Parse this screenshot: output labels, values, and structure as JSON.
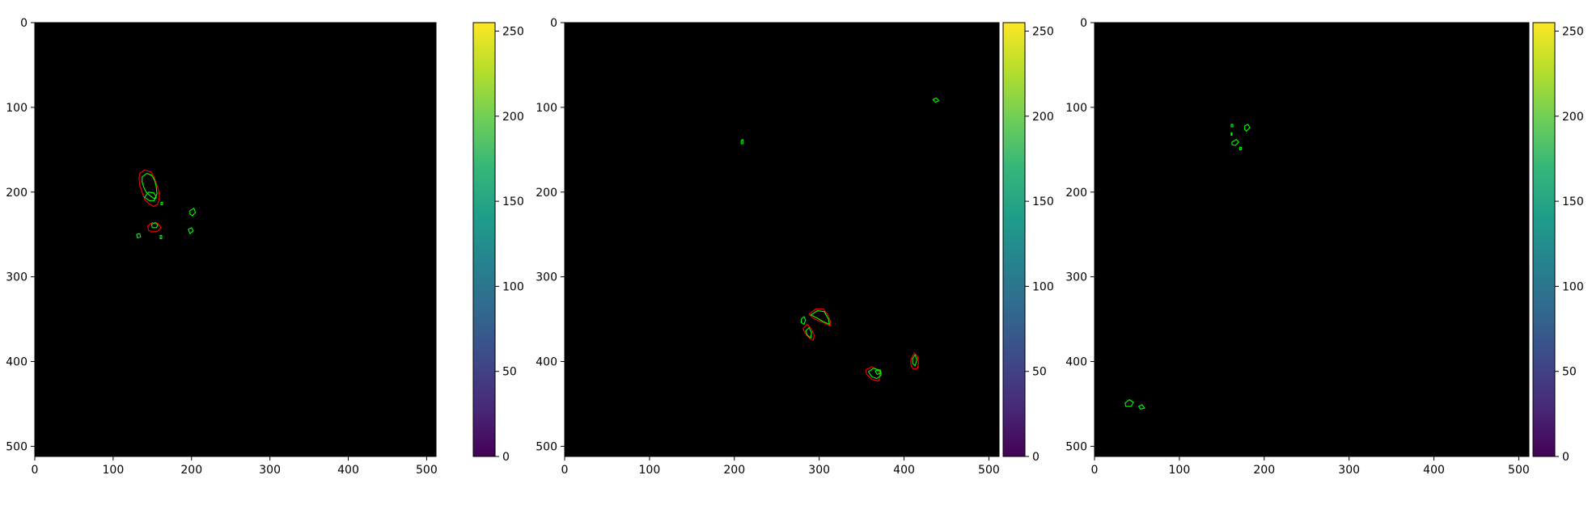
{
  "colors": {
    "background": "#000000",
    "label_color": "#ff0000",
    "prediction_color": "#00ff00",
    "colormap": "viridis"
  },
  "chart_data": [
    {
      "type": "heatmap",
      "title": "",
      "xlabel": "",
      "ylabel": "",
      "xlim": [
        0,
        512
      ],
      "ylim": [
        512,
        0
      ],
      "xticks": [
        0,
        100,
        200,
        300,
        400,
        500
      ],
      "yticks": [
        0,
        100,
        200,
        300,
        400,
        500
      ],
      "colorbar": {
        "vmin": 0,
        "vmax": 255,
        "ticks": [
          0,
          50,
          100,
          150,
          200,
          250
        ]
      },
      "contours": [
        {
          "color": "#ff0000",
          "points": [
            [
              134,
              178
            ],
            [
              140,
              174
            ],
            [
              148,
              176
            ],
            [
              152,
              182
            ],
            [
              155,
              190
            ],
            [
              158,
              198
            ],
            [
              159,
              206
            ],
            [
              157,
              214
            ],
            [
              152,
              217
            ],
            [
              146,
              214
            ],
            [
              140,
              208
            ],
            [
              137,
              200
            ],
            [
              134,
              192
            ],
            [
              133,
              184
            ]
          ]
        },
        {
          "color": "#00ff00",
          "points": [
            [
              137,
              182
            ],
            [
              143,
              178
            ],
            [
              149,
              180
            ],
            [
              153,
              186
            ],
            [
              155,
              194
            ],
            [
              156,
              202
            ],
            [
              153,
              208
            ],
            [
              148,
              205
            ],
            [
              142,
              200
            ],
            [
              139,
              194
            ],
            [
              137,
              188
            ]
          ]
        },
        {
          "color": "#00ff00",
          "points": [
            [
              140,
              206
            ],
            [
              145,
              200
            ],
            [
              152,
              201
            ],
            [
              155,
              206
            ],
            [
              152,
              210
            ],
            [
              146,
              210
            ]
          ]
        },
        {
          "color": "#ff0000",
          "points": [
            [
              144,
              240
            ],
            [
              150,
              236
            ],
            [
              157,
              237
            ],
            [
              161,
              242
            ],
            [
              157,
              246
            ],
            [
              150,
              247
            ],
            [
              145,
              245
            ]
          ]
        },
        {
          "color": "#00ff00",
          "points": [
            [
              149,
              238
            ],
            [
              154,
              236
            ],
            [
              157,
              239
            ],
            [
              155,
              242
            ],
            [
              150,
              242
            ]
          ]
        },
        {
          "color": "#00ff00",
          "points": [
            [
              198,
              222
            ],
            [
              203,
              219
            ],
            [
              205,
              224
            ],
            [
              201,
              228
            ],
            [
              198,
              226
            ]
          ]
        },
        {
          "color": "#00ff00",
          "points": [
            [
              196,
              244
            ],
            [
              200,
              242
            ],
            [
              202,
              246
            ],
            [
              198,
              249
            ]
          ]
        },
        {
          "color": "#00ff00",
          "points": [
            [
              130,
              250
            ],
            [
              134,
              249
            ],
            [
              135,
              253
            ],
            [
              131,
              254
            ]
          ]
        },
        {
          "color": "#00ff00",
          "points": [
            [
              160,
              251
            ],
            [
              162,
              251
            ],
            [
              162,
              255
            ],
            [
              160,
              255
            ]
          ]
        },
        {
          "color": "#00ff00",
          "points": [
            [
              161,
              212
            ],
            [
              163,
              212
            ],
            [
              163,
              215
            ],
            [
              161,
              215
            ]
          ]
        }
      ]
    },
    {
      "type": "heatmap",
      "title": "",
      "xlabel": "",
      "ylabel": "",
      "xlim": [
        0,
        512
      ],
      "ylim": [
        512,
        0
      ],
      "xticks": [
        0,
        100,
        200,
        300,
        400,
        500
      ],
      "yticks": [
        0,
        100,
        200,
        300,
        400,
        500
      ],
      "colorbar": {
        "vmin": 0,
        "vmax": 255,
        "ticks": [
          0,
          50,
          100,
          150,
          200,
          250
        ]
      },
      "contours": [
        {
          "color": "#ff0000",
          "points": [
            [
              288,
              344
            ],
            [
              296,
              338
            ],
            [
              305,
              338
            ],
            [
              310,
              345
            ],
            [
              313,
              352
            ],
            [
              313,
              358
            ],
            [
              307,
              355
            ],
            [
              300,
              352
            ],
            [
              293,
              349
            ]
          ]
        },
        {
          "color": "#00ff00",
          "points": [
            [
              290,
              345
            ],
            [
              298,
              340
            ],
            [
              306,
              341
            ],
            [
              311,
              350
            ],
            [
              312,
              356
            ],
            [
              305,
              353
            ],
            [
              298,
              349
            ]
          ]
        },
        {
          "color": "#ff0000",
          "points": [
            [
              281,
              361
            ],
            [
              286,
              356
            ],
            [
              291,
              362
            ],
            [
              294,
              369
            ],
            [
              293,
              375
            ],
            [
              288,
              372
            ],
            [
              283,
              366
            ]
          ]
        },
        {
          "color": "#00ff00",
          "points": [
            [
              279,
              350
            ],
            [
              282,
              347
            ],
            [
              284,
              351
            ],
            [
              282,
              356
            ],
            [
              279,
              354
            ]
          ]
        },
        {
          "color": "#00ff00",
          "points": [
            [
              284,
              364
            ],
            [
              288,
              360
            ],
            [
              291,
              366
            ],
            [
              290,
              372
            ],
            [
              286,
              369
            ]
          ]
        },
        {
          "color": "#ff0000",
          "points": [
            [
              355,
              410
            ],
            [
              362,
              406
            ],
            [
              369,
              410
            ],
            [
              372,
              417
            ],
            [
              370,
              423
            ],
            [
              362,
              421
            ],
            [
              356,
              415
            ]
          ]
        },
        {
          "color": "#00ff00",
          "points": [
            [
              358,
              412
            ],
            [
              364,
              408
            ],
            [
              371,
              410
            ],
            [
              373,
              416
            ],
            [
              368,
              420
            ],
            [
              362,
              418
            ]
          ]
        },
        {
          "color": "#00ff00",
          "points": [
            [
              366,
              411
            ],
            [
              372,
              410
            ],
            [
              373,
              414
            ],
            [
              368,
              415
            ]
          ]
        },
        {
          "color": "#ff0000",
          "points": [
            [
              408,
              398
            ],
            [
              412,
              390
            ],
            [
              416,
              394
            ],
            [
              417,
              402
            ],
            [
              416,
              408
            ],
            [
              411,
              409
            ],
            [
              408,
              404
            ]
          ]
        },
        {
          "color": "#00ff00",
          "points": [
            [
              410,
              397
            ],
            [
              413,
              392
            ],
            [
              415,
              398
            ],
            [
              413,
              405
            ],
            [
              410,
              402
            ]
          ]
        },
        {
          "color": "#00ff00",
          "points": [
            [
              434,
              91
            ],
            [
              438,
              89
            ],
            [
              441,
              92
            ],
            [
              437,
              94
            ]
          ]
        },
        {
          "color": "#00ff00",
          "points": [
            [
              208,
              139
            ],
            [
              210,
              138
            ],
            [
              210,
              143
            ],
            [
              208,
              143
            ]
          ]
        }
      ]
    },
    {
      "type": "heatmap",
      "title": "",
      "xlabel": "",
      "ylabel": "",
      "xlim": [
        0,
        512
      ],
      "ylim": [
        512,
        0
      ],
      "xticks": [
        0,
        100,
        200,
        300,
        400,
        500
      ],
      "yticks": [
        0,
        100,
        200,
        300,
        400,
        500
      ],
      "colorbar": {
        "vmin": 0,
        "vmax": 255,
        "ticks": [
          0,
          50,
          100,
          150,
          200,
          250
        ]
      },
      "contours": [
        {
          "color": "#00ff00",
          "points": [
            [
              177,
              122
            ],
            [
              181,
              120
            ],
            [
              183,
              124
            ],
            [
              179,
              128
            ],
            [
              177,
              126
            ]
          ]
        },
        {
          "color": "#00ff00",
          "points": [
            [
              162,
              141
            ],
            [
              167,
              138
            ],
            [
              170,
              141
            ],
            [
              166,
              145
            ],
            [
              162,
              144
            ]
          ]
        },
        {
          "color": "#00ff00",
          "points": [
            [
              161,
              120
            ],
            [
              163,
              120
            ],
            [
              163,
              123
            ],
            [
              161,
              123
            ]
          ]
        },
        {
          "color": "#00ff00",
          "points": [
            [
              161,
              130
            ],
            [
              162,
              130
            ],
            [
              162,
              133
            ],
            [
              161,
              133
            ]
          ]
        },
        {
          "color": "#00ff00",
          "points": [
            [
              171,
              147
            ],
            [
              173,
              147
            ],
            [
              173,
              150
            ],
            [
              171,
              150
            ]
          ]
        },
        {
          "color": "#00ff00",
          "points": [
            [
              36,
              449
            ],
            [
              41,
              445
            ],
            [
              46,
              448
            ],
            [
              43,
              453
            ],
            [
              37,
              453
            ]
          ]
        },
        {
          "color": "#00ff00",
          "points": [
            [
              52,
              453
            ],
            [
              56,
              451
            ],
            [
              59,
              455
            ],
            [
              54,
              456
            ]
          ]
        }
      ]
    }
  ]
}
